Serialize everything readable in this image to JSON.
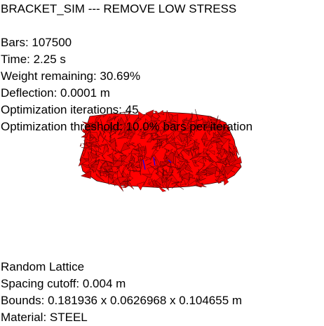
{
  "title": "BRACKET_SIM --- REMOVE LOW STRESS",
  "stats": {
    "bars": "Bars: 107500",
    "time": "Time: 2.25 s",
    "weight": "Weight remaining: 30.69%",
    "deflection": "Deflection: 0.0001 m",
    "iterations": "Optimization iterations: 45",
    "threshold": "Optimization threshold: 10.0% bars per iteration"
  },
  "info": {
    "lattice": "Random Lattice",
    "spacing": "Spacing cutoff: 0.004 m",
    "bounds": "Bounds: 0.181936 x 0.0626968 x 0.104655 m",
    "material": "Material: STEEL"
  },
  "colors": {
    "mesh": "#ff0000",
    "mesh_edge": "#2a0000",
    "load_marker": "#0000ff",
    "background": "#ffffff"
  }
}
